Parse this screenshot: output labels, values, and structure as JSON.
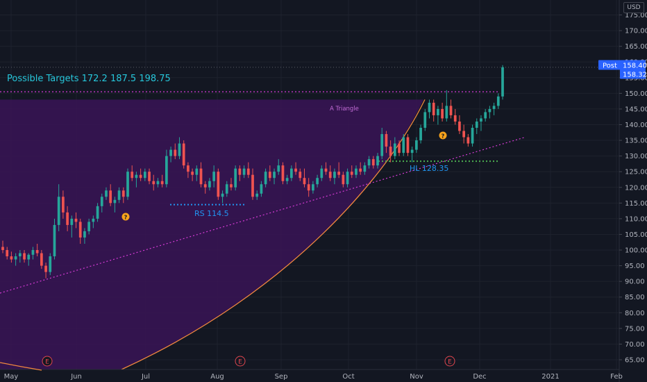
{
  "currency": "USD",
  "colors": {
    "background": "#131722",
    "grid": "#1e222d",
    "up": "#26a69a",
    "down": "#ef5350",
    "triangle_fill": "#3a1456",
    "triangle_line": "#d63ad6",
    "arc": "#f0883e",
    "support": "#2196f3",
    "higher_low": "#4caf50",
    "annotation_text": "#26c6da",
    "price_badge": "#2962ff",
    "earnings": "#e0464f",
    "dividend": "#f7a21b"
  },
  "annotations": {
    "targets": "Possible Targets 172.2    187.5    198.75",
    "triangle": "A Triangle",
    "support": "RS 114.5",
    "higher_low": "HL 128.35"
  },
  "price_badges": {
    "post_label": "Post",
    "post_price": "158.40",
    "last_price": "158.32"
  },
  "markers": {
    "earnings_label": "E",
    "dividend_label": "?"
  },
  "chart_data": {
    "type": "candlestick",
    "y_axis_ticks": [
      "175.00",
      "170.00",
      "165.00",
      "160.00",
      "155.00",
      "150.00",
      "145.00",
      "140.00",
      "135.00",
      "130.00",
      "125.00",
      "120.00",
      "115.00",
      "110.00",
      "105.00",
      "100.00",
      "95.00",
      "90.00",
      "85.00",
      "80.00",
      "75.00",
      "70.00",
      "65.00"
    ],
    "x_axis_labels": [
      "May",
      "Jun",
      "Jul",
      "Aug",
      "Sep",
      "Oct",
      "Nov",
      "Dec",
      "2021",
      "Feb"
    ],
    "ylim": [
      63,
      178
    ],
    "levels": {
      "support": 114.5,
      "higher_low": 128.35,
      "triangle_top": 150.5
    },
    "targets": [
      172.2,
      187.5,
      198.75
    ],
    "last_price": 158.32,
    "post_price": 158.4,
    "candles": [
      [
        101,
        103,
        99,
        100
      ],
      [
        100,
        101,
        97,
        98
      ],
      [
        98,
        99.5,
        96,
        97
      ],
      [
        97,
        99,
        95,
        98
      ],
      [
        98,
        100,
        96,
        99
      ],
      [
        99,
        100,
        96,
        97
      ],
      [
        97,
        99,
        95,
        98.5
      ],
      [
        98.5,
        101,
        97,
        100
      ],
      [
        100,
        102,
        98,
        99
      ],
      [
        99,
        100,
        94,
        95
      ],
      [
        95,
        96,
        91,
        93
      ],
      [
        93,
        99,
        92,
        98
      ],
      [
        98,
        110,
        97,
        108
      ],
      [
        108,
        121,
        106,
        117
      ],
      [
        117,
        119,
        110,
        112
      ],
      [
        112,
        114,
        106,
        108
      ],
      [
        108,
        111,
        104,
        110
      ],
      [
        110,
        112,
        107,
        109
      ],
      [
        109,
        110,
        102,
        104
      ],
      [
        104,
        107,
        102,
        106
      ],
      [
        106,
        110,
        105,
        109
      ],
      [
        109,
        111,
        107,
        110
      ],
      [
        110,
        115,
        109,
        114
      ],
      [
        114,
        118,
        112,
        117
      ],
      [
        117,
        120,
        116,
        119
      ],
      [
        119,
        121,
        114,
        115
      ],
      [
        115,
        117,
        112,
        116
      ],
      [
        116,
        120,
        115,
        119
      ],
      [
        119,
        120,
        115,
        117
      ],
      [
        117,
        126,
        116,
        125
      ],
      [
        125,
        127,
        122,
        123
      ],
      [
        123,
        125,
        120,
        124
      ],
      [
        124,
        126,
        122,
        123
      ],
      [
        123,
        126,
        122,
        125
      ],
      [
        125,
        126,
        121,
        122
      ],
      [
        122,
        124,
        119,
        121
      ],
      [
        121,
        123,
        120,
        122
      ],
      [
        122,
        124,
        120,
        121
      ],
      [
        121,
        132,
        120,
        130
      ],
      [
        130,
        133,
        128,
        132
      ],
      [
        132,
        134,
        129,
        130
      ],
      [
        130,
        136,
        129,
        134
      ],
      [
        134,
        135,
        126,
        127
      ],
      [
        127,
        128,
        123,
        125
      ],
      [
        125,
        126,
        122,
        124
      ],
      [
        124,
        127,
        122,
        126
      ],
      [
        126,
        128,
        120,
        121
      ],
      [
        121,
        122,
        118,
        120
      ],
      [
        120,
        123,
        119,
        122
      ],
      [
        122,
        127,
        120,
        125
      ],
      [
        125,
        126,
        116,
        117
      ],
      [
        117,
        119,
        115,
        118
      ],
      [
        118,
        122,
        117,
        121
      ],
      [
        121,
        123,
        119,
        120
      ],
      [
        120,
        127,
        119,
        126
      ],
      [
        126,
        127,
        122,
        124
      ],
      [
        124,
        127,
        123,
        126
      ],
      [
        126,
        128,
        123,
        124
      ],
      [
        124,
        126,
        116,
        117
      ],
      [
        117,
        119,
        116,
        118
      ],
      [
        118,
        122,
        117,
        121
      ],
      [
        121,
        126,
        120,
        125
      ],
      [
        125,
        127,
        122,
        123
      ],
      [
        123,
        126,
        121,
        125
      ],
      [
        125,
        129,
        124,
        127
      ],
      [
        127,
        128,
        121,
        122
      ],
      [
        122,
        124,
        121,
        123
      ],
      [
        123,
        127,
        122,
        126
      ],
      [
        126,
        128,
        124,
        125
      ],
      [
        125,
        126,
        122,
        123
      ],
      [
        123,
        126,
        120,
        121
      ],
      [
        121,
        123,
        117,
        119
      ],
      [
        119,
        122,
        118,
        121
      ],
      [
        121,
        124,
        120,
        123
      ],
      [
        123,
        127,
        122,
        126
      ],
      [
        126,
        128,
        124,
        125
      ],
      [
        125,
        127,
        122,
        123
      ],
      [
        123,
        126,
        121,
        125
      ],
      [
        125,
        128,
        123,
        124
      ],
      [
        124,
        125,
        120,
        121
      ],
      [
        121,
        126,
        120,
        125
      ],
      [
        125,
        127,
        123,
        124
      ],
      [
        124,
        127,
        123,
        126
      ],
      [
        126,
        128,
        124,
        125
      ],
      [
        125,
        128,
        124,
        127
      ],
      [
        127,
        130,
        126,
        129
      ],
      [
        129,
        130,
        126,
        127
      ],
      [
        127,
        131,
        126,
        130
      ],
      [
        130,
        139,
        129,
        137
      ],
      [
        137,
        138,
        131,
        133
      ],
      [
        133,
        135,
        128,
        130
      ],
      [
        130,
        136,
        129,
        134
      ],
      [
        134,
        135,
        130,
        131
      ],
      [
        131,
        137,
        130,
        136
      ],
      [
        136,
        137,
        130,
        131
      ],
      [
        131,
        133,
        128,
        132
      ],
      [
        132,
        136,
        131,
        135
      ],
      [
        135,
        140,
        134,
        139
      ],
      [
        139,
        145,
        138,
        144
      ],
      [
        144,
        148,
        142,
        147
      ],
      [
        147,
        148,
        141,
        143
      ],
      [
        143,
        146,
        140,
        145
      ],
      [
        145,
        147,
        141,
        142
      ],
      [
        142,
        151,
        141,
        146
      ],
      [
        146,
        148,
        142,
        143
      ],
      [
        143,
        145,
        140,
        141
      ],
      [
        141,
        143,
        137,
        138
      ],
      [
        138,
        140,
        134,
        136
      ],
      [
        136,
        137,
        133,
        134
      ],
      [
        134,
        140,
        133,
        139
      ],
      [
        139,
        142,
        137,
        141
      ],
      [
        141,
        143,
        138,
        142
      ],
      [
        142,
        145,
        141,
        144
      ],
      [
        144,
        146,
        142,
        145
      ],
      [
        145,
        147,
        143,
        146
      ],
      [
        146,
        150,
        145,
        149
      ],
      [
        149,
        159,
        148,
        158.32
      ]
    ]
  }
}
